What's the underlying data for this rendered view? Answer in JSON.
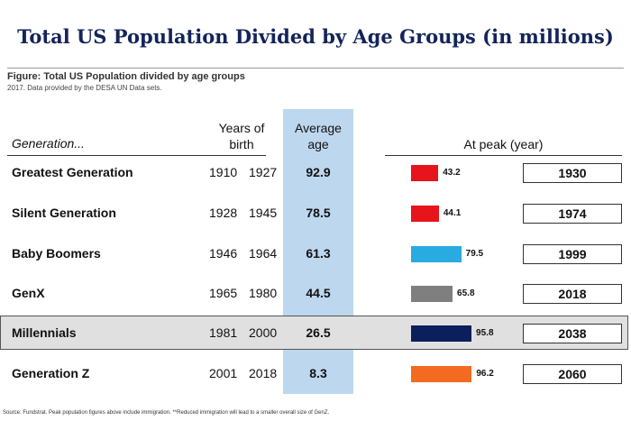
{
  "title": "Total US Population Divided by Age Groups (in millions)",
  "figure_title": "Figure: Total US Population divided by age groups",
  "figure_subtitle": "2017. Data provided by the DESA UN Data sets.",
  "source": "Source: Fundstrat.  Peak population figures above include immigration.  **Reduced immigration will lead to a smaller overall size of GenZ.",
  "headers": {
    "generation": "Generation...",
    "years_line1": "Years of",
    "years_line2": "birth",
    "avg_line1": "Average",
    "avg_line2": "age",
    "peak": "At peak (year)"
  },
  "chart_data": {
    "type": "bar",
    "orientation": "horizontal",
    "categories": [
      "Greatest Generation",
      "Silent Generation",
      "Baby Boomers",
      "GenX",
      "Millennials",
      "Generation Z"
    ],
    "birth_start": [
      "1910",
      "1928",
      "1946",
      "1965",
      "1981",
      "2001"
    ],
    "birth_end": [
      "1927",
      "1945",
      "1964",
      "1980",
      "2000",
      "2018"
    ],
    "average_age": [
      "92.9",
      "78.5",
      "61.3",
      "44.5",
      "26.5",
      "8.3"
    ],
    "values": [
      43.2,
      44.1,
      79.5,
      65.8,
      95.8,
      96.2
    ],
    "peak_year": [
      "1930",
      "1974",
      "1999",
      "2018",
      "2038",
      "2060"
    ],
    "colors": [
      "#e8141c",
      "#e8141c",
      "#29aae1",
      "#7f7f7f",
      "#0b1f5c",
      "#f26b21"
    ],
    "highlighted": "Millennials"
  }
}
